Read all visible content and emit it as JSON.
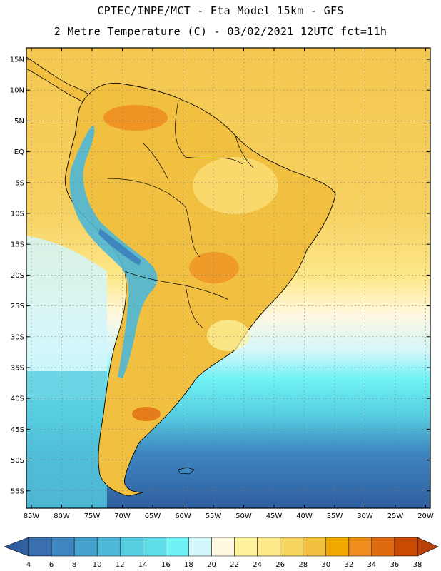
{
  "header": {
    "line1": "CPTEC/INPE/MCT -  Eta Model 15km - GFS",
    "line2": "2 Metre Temperature (C) - 03/02/2021 12UTC fct=11h"
  },
  "map": {
    "lat_labels": [
      "15N",
      "10N",
      "5N",
      "EQ",
      "5S",
      "10S",
      "15S",
      "20S",
      "25S",
      "30S",
      "35S",
      "40S",
      "45S",
      "50S",
      "55S"
    ],
    "lon_labels": [
      "85W",
      "80W",
      "75W",
      "70W",
      "65W",
      "60W",
      "55W",
      "50W",
      "45W",
      "40W",
      "35W",
      "30W",
      "25W",
      "20W"
    ]
  },
  "legend": {
    "labels": [
      "4",
      "6",
      "8",
      "10",
      "12",
      "14",
      "16",
      "18",
      "20",
      "22",
      "24",
      "26",
      "28",
      "30",
      "32",
      "34",
      "36",
      "38"
    ],
    "colors": [
      "#3a6fb0",
      "#3d86c0",
      "#44a0cc",
      "#4db8d8",
      "#56cde0",
      "#5fdde8",
      "#6ff2f5",
      "#d2f6fa",
      "#fff8e0",
      "#fff3a0",
      "#fde88a",
      "#f6d460",
      "#f2c040",
      "#f0a800",
      "#ee8c20",
      "#e06a10",
      "#c94a00"
    ],
    "below_color": "#2f5e9e",
    "above_color": "#b8400a"
  },
  "colors": {
    "ocean_tropical": "#f6d060",
    "ocean_subtropical": "#fde88a",
    "ocean_mid": "#d2f6fa",
    "ocean_cold": "#56cde0",
    "ocean_polar": "#2f5e9e",
    "land_base": "#f2c040",
    "land_warm": "#ee8c20",
    "andes": "#4db8d8"
  }
}
